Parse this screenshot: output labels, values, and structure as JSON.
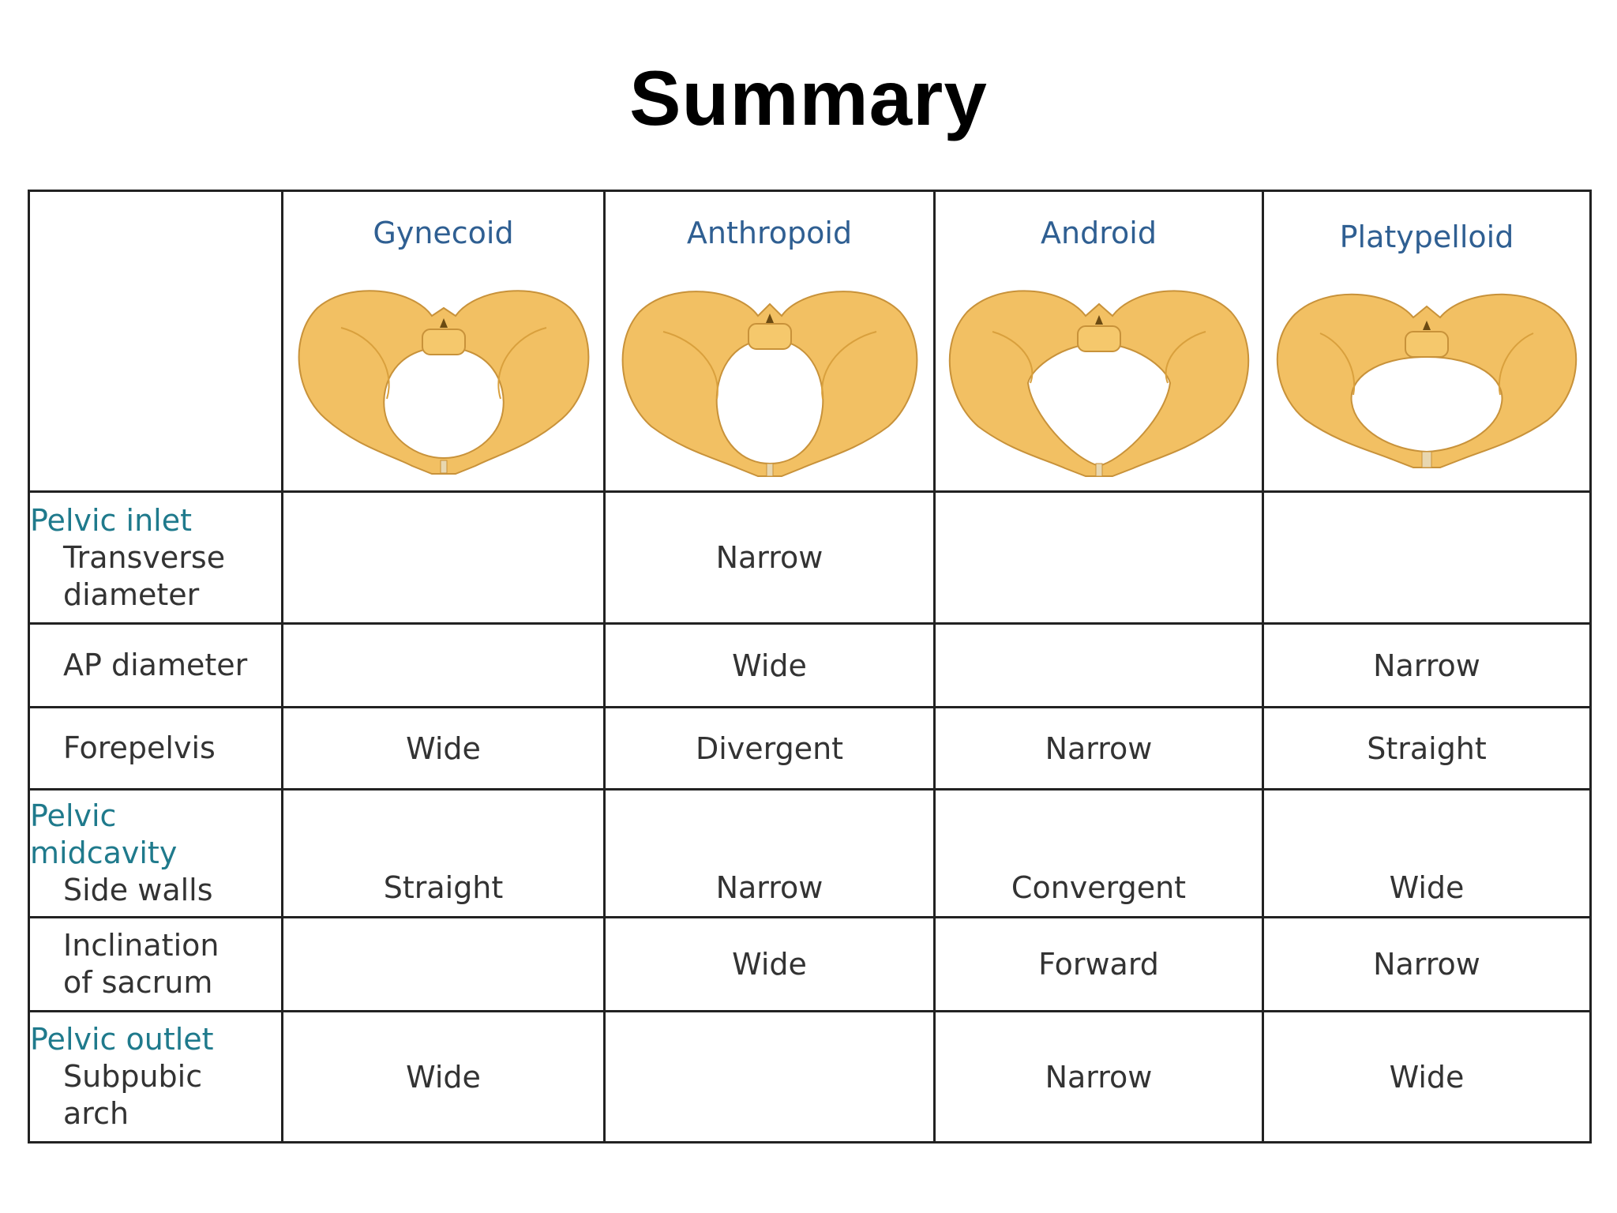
{
  "title": "Summary",
  "table": {
    "types": [
      "Gynecoid",
      "Anthropoid",
      "Android",
      "Platypelloid"
    ],
    "rows": [
      {
        "group": "Pelvic inlet",
        "label": [
          "Transverse",
          "diameter"
        ],
        "values": [
          "",
          "Narrow",
          "",
          ""
        ]
      },
      {
        "group": "",
        "label": [
          "AP diameter"
        ],
        "values": [
          "",
          "Wide",
          "",
          "Narrow"
        ]
      },
      {
        "group": "",
        "label": [
          "Forepelvis"
        ],
        "values": [
          "Wide",
          "Divergent",
          "Narrow",
          "Straight"
        ]
      },
      {
        "group": "Pelvic midcavity",
        "group_lines": [
          "Pelvic",
          "midcavity"
        ],
        "label": [
          "Side walls"
        ],
        "values": [
          "Straight",
          "Narrow",
          "Convergent",
          "Wide"
        ]
      },
      {
        "group": "",
        "label": [
          "Inclination",
          "of sacrum"
        ],
        "values": [
          "",
          "Wide",
          "Forward",
          "Narrow"
        ]
      },
      {
        "group": "Pelvic outlet",
        "label": [
          "Subpubic",
          "arch"
        ],
        "values": [
          "Wide",
          "",
          "Narrow",
          "Wide"
        ]
      }
    ]
  },
  "colors": {
    "type_header": "#2f5f92",
    "group_label": "#1f7a8c",
    "bone": "#f2c063",
    "bone_dark": "#d9a03d"
  },
  "icons": [
    "gynecoid-pelvis-icon",
    "anthropoid-pelvis-icon",
    "android-pelvis-icon",
    "platypelloid-pelvis-icon"
  ]
}
